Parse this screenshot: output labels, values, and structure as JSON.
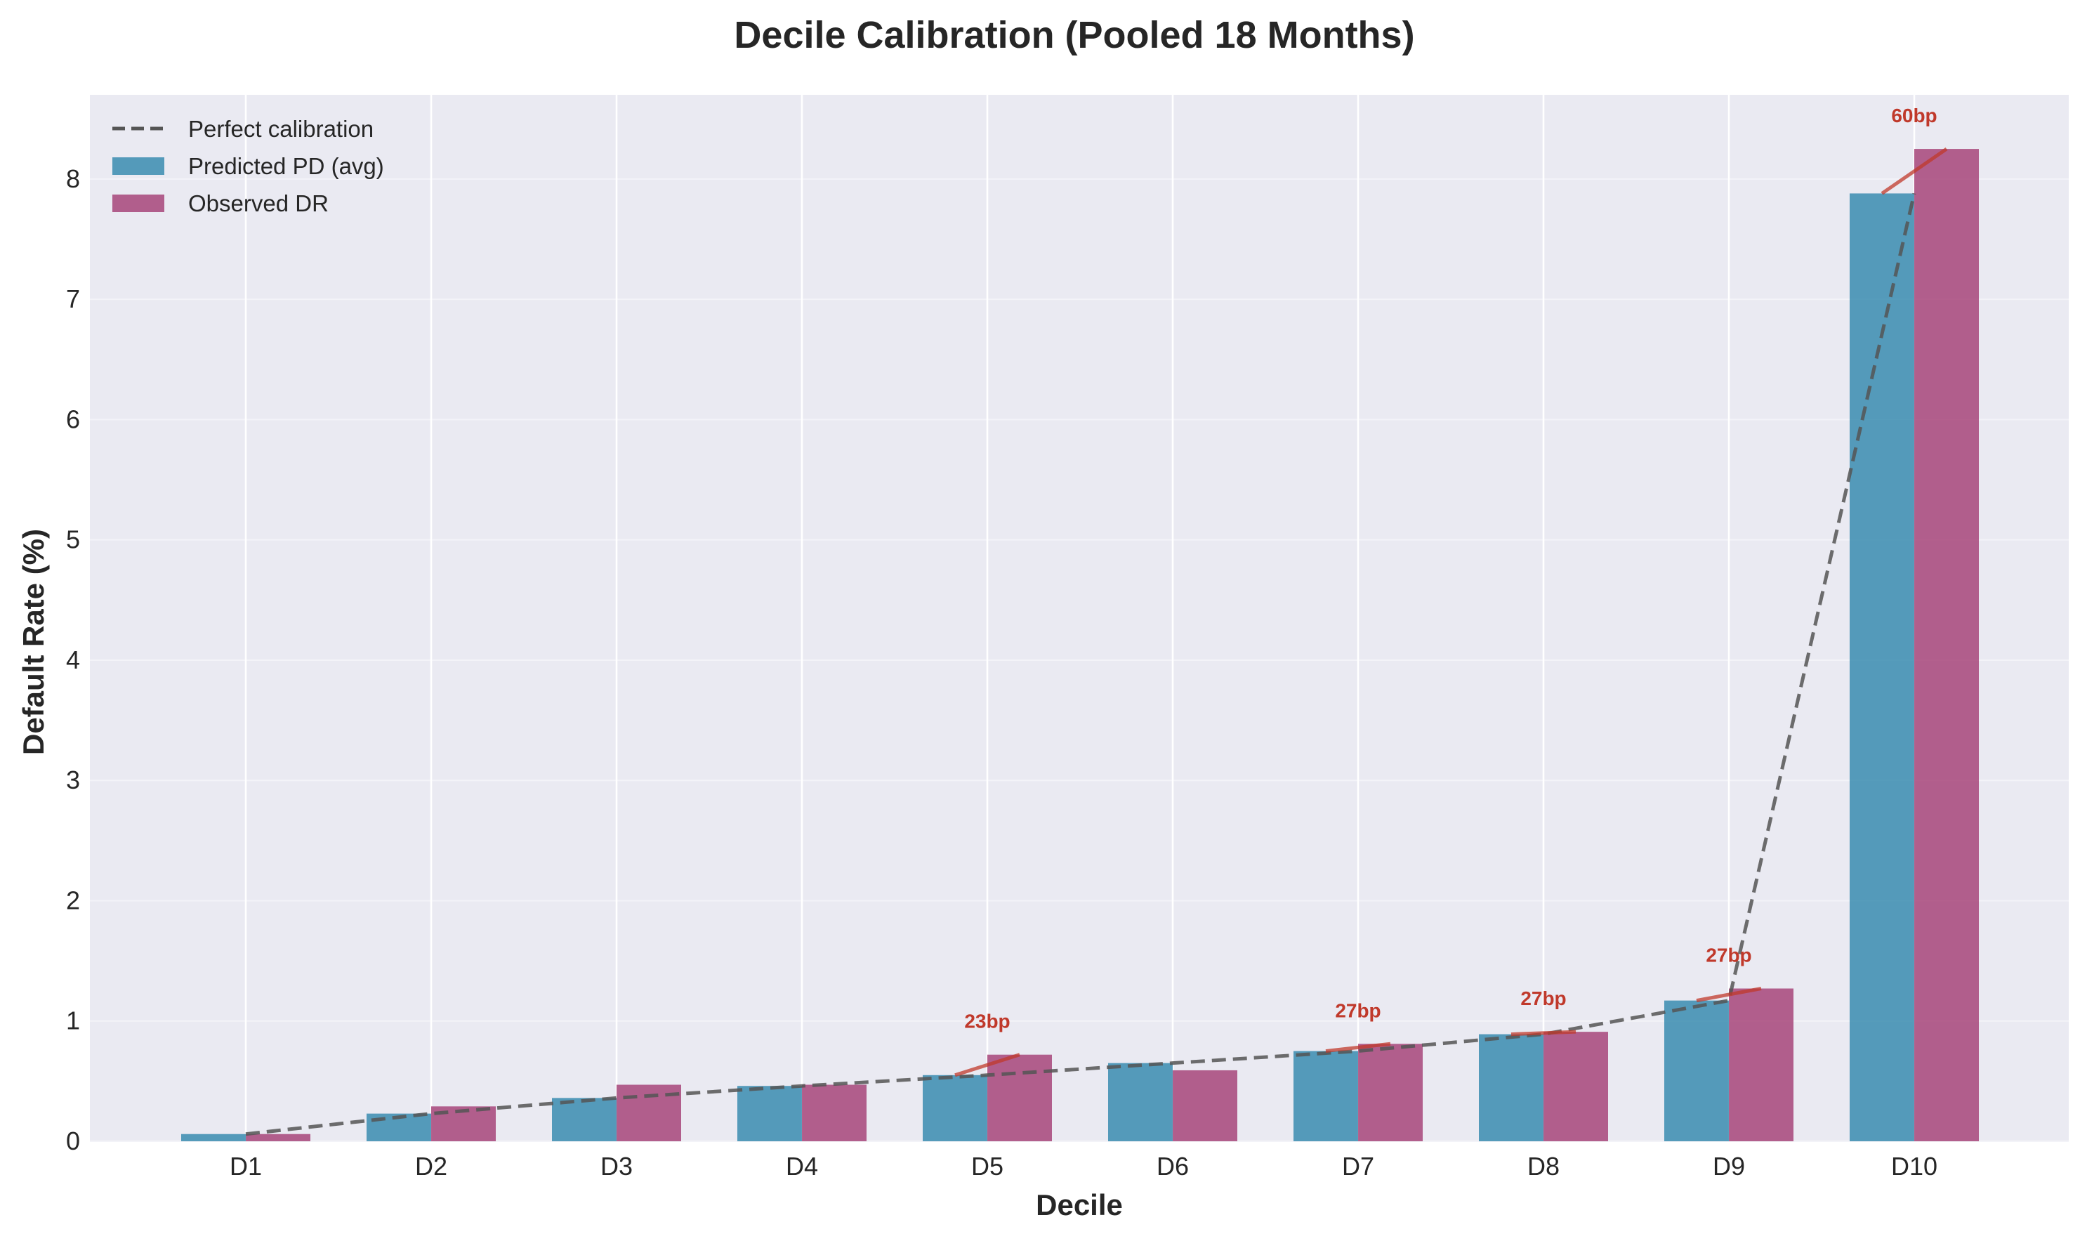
{
  "chart_data": {
    "type": "bar",
    "title": "Decile Calibration (Pooled 18 Months)",
    "xlabel": "Decile",
    "ylabel": "Default Rate (%)",
    "categories": [
      "D1",
      "D2",
      "D3",
      "D4",
      "D5",
      "D6",
      "D7",
      "D8",
      "D9",
      "D10"
    ],
    "ylim": [
      0,
      8.7
    ],
    "yticks": [
      "0",
      "1",
      "2",
      "3",
      "4",
      "5",
      "6",
      "7",
      "8"
    ],
    "grid": true,
    "legend_position": "top-left",
    "series": [
      {
        "name": "Predicted PD (avg)",
        "kind": "bar",
        "color": "#2e86ab",
        "values": [
          0.06,
          0.23,
          0.36,
          0.46,
          0.55,
          0.65,
          0.75,
          0.89,
          1.17,
          7.88
        ]
      },
      {
        "name": "Observed DR",
        "kind": "bar",
        "color": "#a23b72",
        "values": [
          0.06,
          0.29,
          0.47,
          0.47,
          0.72,
          0.59,
          0.81,
          0.91,
          1.27,
          8.25
        ]
      }
    ],
    "reference_line": {
      "name": "Perfect calibration",
      "style": "dashed",
      "color": "#555555",
      "values": [
        0.06,
        0.23,
        0.36,
        0.46,
        0.55,
        0.65,
        0.75,
        0.89,
        1.17,
        7.88
      ]
    },
    "annotations": [
      {
        "category": "D5",
        "label": "23bp"
      },
      {
        "category": "D7",
        "label": "27bp"
      },
      {
        "category": "D8",
        "label": "27bp"
      },
      {
        "category": "D9",
        "label": "27bp"
      },
      {
        "category": "D10",
        "label": "60bp"
      }
    ],
    "colors": {
      "background": "#eaeaf2",
      "grid": "#ffffff",
      "annotation": "#c0392b"
    }
  }
}
